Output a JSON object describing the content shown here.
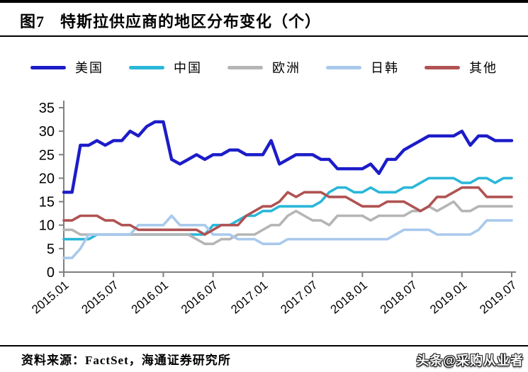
{
  "header": {
    "figure_label": "图7",
    "title": "特斯拉供应商的地区分布变化（个）"
  },
  "footer": {
    "source": "资料来源：FactSet，海通证券研究所",
    "watermark": "头条@采购从业者"
  },
  "chart_data": {
    "type": "line",
    "title": "特斯拉供应商的地区分布变化（个）",
    "xlabel": "",
    "ylabel": "",
    "ylim": [
      0,
      35
    ],
    "y_ticks": [
      0,
      5,
      10,
      15,
      20,
      25,
      30,
      35
    ],
    "grid": false,
    "legend_position": "top",
    "axis_color": "#7f7f7f",
    "x_tick_labels": [
      "2015.01",
      "2015.07",
      "2016.01",
      "2016.07",
      "2017.01",
      "2017.07",
      "2018.01",
      "2018.07",
      "2019.01",
      "2019.07"
    ],
    "x_tick_indices": [
      0,
      6,
      12,
      18,
      24,
      30,
      36,
      42,
      48,
      54
    ],
    "x": [
      "2015.01",
      "2015.02",
      "2015.03",
      "2015.04",
      "2015.05",
      "2015.06",
      "2015.07",
      "2015.08",
      "2015.09",
      "2015.10",
      "2015.11",
      "2015.12",
      "2016.01",
      "2016.02",
      "2016.03",
      "2016.04",
      "2016.05",
      "2016.06",
      "2016.07",
      "2016.08",
      "2016.09",
      "2016.10",
      "2016.11",
      "2016.12",
      "2017.01",
      "2017.02",
      "2017.03",
      "2017.04",
      "2017.05",
      "2017.06",
      "2017.07",
      "2017.08",
      "2017.09",
      "2017.10",
      "2017.11",
      "2017.12",
      "2018.01",
      "2018.02",
      "2018.03",
      "2018.04",
      "2018.05",
      "2018.06",
      "2018.07",
      "2018.08",
      "2018.09",
      "2018.10",
      "2018.11",
      "2018.12",
      "2019.01",
      "2019.02",
      "2019.03",
      "2019.04",
      "2019.05",
      "2019.06",
      "2019.07"
    ],
    "series": [
      {
        "name": "美国",
        "color": "#1c1cc9",
        "width": 4.4,
        "values": [
          17,
          17,
          27,
          27,
          28,
          27,
          28,
          28,
          30,
          29,
          31,
          32,
          32,
          24,
          23,
          24,
          25,
          24,
          25,
          25,
          26,
          26,
          25,
          25,
          25,
          28,
          23,
          24,
          25,
          25,
          25,
          24,
          24,
          22,
          22,
          22,
          22,
          23,
          21,
          24,
          24,
          26,
          27,
          28,
          29,
          29,
          29,
          29,
          30,
          27,
          29,
          29,
          28,
          28,
          28
        ]
      },
      {
        "name": "中国",
        "color": "#2ab7d9",
        "width": 3.6,
        "values": [
          7,
          7,
          7,
          7,
          8,
          8,
          8,
          8,
          8,
          8,
          8,
          8,
          8,
          8,
          8,
          8,
          8,
          8,
          10,
          10,
          10,
          11,
          12,
          12,
          13,
          13,
          14,
          14,
          14,
          14,
          14,
          15,
          17,
          18,
          18,
          17,
          17,
          18,
          17,
          17,
          17,
          18,
          18,
          19,
          20,
          20,
          20,
          20,
          19,
          19,
          20,
          20,
          19,
          20,
          20
        ]
      },
      {
        "name": "欧洲",
        "color": "#b5b5b5",
        "width": 3.6,
        "values": [
          9,
          9,
          8,
          8,
          8,
          8,
          8,
          8,
          8,
          8,
          8,
          8,
          8,
          8,
          8,
          8,
          7,
          6,
          6,
          7,
          7,
          8,
          8,
          8,
          9,
          10,
          10,
          12,
          13,
          12,
          11,
          11,
          10,
          12,
          12,
          12,
          12,
          11,
          12,
          12,
          12,
          12,
          13,
          13,
          14,
          13,
          14,
          15,
          13,
          13,
          14,
          14,
          14,
          14,
          14
        ]
      },
      {
        "name": "日韩",
        "color": "#a9c9ec",
        "width": 3.6,
        "values": [
          3,
          3,
          5,
          8,
          8,
          8,
          8,
          8,
          8,
          10,
          10,
          10,
          10,
          12,
          10,
          10,
          10,
          10,
          8,
          8,
          8,
          7,
          7,
          7,
          6,
          6,
          6,
          7,
          7,
          7,
          7,
          7,
          7,
          7,
          7,
          7,
          7,
          7,
          7,
          7,
          8,
          9,
          9,
          9,
          9,
          8,
          8,
          8,
          8,
          8,
          9,
          11,
          11,
          11,
          11
        ]
      },
      {
        "name": "其他",
        "color": "#b05252",
        "width": 3.6,
        "values": [
          11,
          11,
          12,
          12,
          12,
          11,
          11,
          10,
          10,
          9,
          9,
          9,
          9,
          9,
          9,
          9,
          9,
          8,
          9,
          10,
          10,
          10,
          12,
          13,
          14,
          14,
          15,
          17,
          16,
          17,
          17,
          17,
          16,
          16,
          16,
          15,
          14,
          14,
          14,
          15,
          15,
          15,
          14,
          13,
          14,
          16,
          16,
          17,
          18,
          18,
          18,
          16,
          16,
          16,
          16
        ]
      }
    ]
  }
}
